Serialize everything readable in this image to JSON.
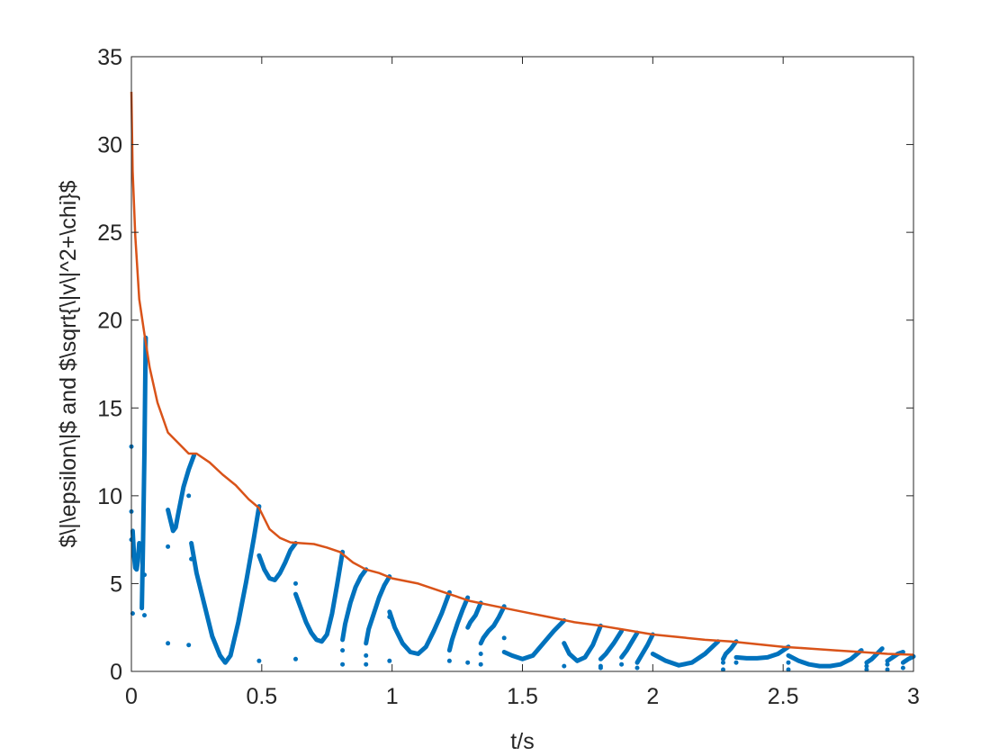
{
  "chart_data": {
    "type": "line",
    "title": "",
    "xlabel": "t/s",
    "ylabel": "$\\|\\epsilon\\|$ and $\\sqrt{\\|v\\|^2+\\chi}$",
    "xlim": [
      0,
      3
    ],
    "ylim": [
      0,
      35
    ],
    "xticks": [
      0,
      0.5,
      1,
      1.5,
      2,
      2.5,
      3
    ],
    "xtick_labels": [
      "0",
      "0.5",
      "1",
      "1.5",
      "2",
      "2.5",
      "3"
    ],
    "yticks": [
      0,
      5,
      10,
      15,
      20,
      25,
      30,
      35
    ],
    "ytick_labels": [
      "0",
      "5",
      "10",
      "15",
      "20",
      "25",
      "30",
      "35"
    ],
    "grid": false,
    "legend": null,
    "colors": {
      "envelope": "#D95319",
      "error": "#0072BD",
      "axis": "#262626"
    },
    "series": [
      {
        "style": "line",
        "x": [
          0,
          0.005,
          0.015,
          0.03,
          0.05,
          0.07,
          0.1,
          0.14,
          0.18,
          0.22,
          0.25,
          0.3,
          0.35,
          0.4,
          0.45,
          0.49,
          0.53,
          0.57,
          0.61,
          0.65,
          0.7,
          0.75,
          0.8,
          0.85,
          0.9,
          0.95,
          1.0,
          1.1,
          1.2,
          1.3,
          1.4,
          1.5,
          1.6,
          1.7,
          1.8,
          1.9,
          2.0,
          2.1,
          2.2,
          2.3,
          2.4,
          2.5,
          2.6,
          2.7,
          2.8,
          2.9,
          3.0
        ],
        "y": [
          33,
          28.5,
          24.8,
          21.2,
          19.2,
          17.3,
          15.3,
          13.6,
          13.0,
          12.4,
          12.4,
          11.9,
          11.2,
          10.6,
          9.8,
          9.3,
          8.1,
          7.6,
          7.35,
          7.3,
          7.25,
          7.05,
          6.8,
          6.2,
          5.8,
          5.6,
          5.3,
          5.0,
          4.5,
          4.0,
          3.7,
          3.4,
          3.1,
          2.8,
          2.6,
          2.35,
          2.1,
          1.95,
          1.8,
          1.7,
          1.55,
          1.4,
          1.3,
          1.2,
          1.1,
          1.0,
          0.95
        ]
      },
      {
        "style": "markers",
        "segments": [
          {
            "x": [
              0.005,
              0.01,
              0.015,
              0.02,
              0.025,
              0.03
            ],
            "y": [
              8.0,
              6.6,
              5.9,
              5.8,
              6.3,
              7.3
            ]
          },
          {
            "x": [
              0.04,
              0.045,
              0.05,
              0.055
            ],
            "y": [
              3.6,
              7.5,
              12.5,
              19.0
            ]
          },
          {
            "x": [
              0.14,
              0.15,
              0.16,
              0.17,
              0.18,
              0.2,
              0.22,
              0.24
            ],
            "y": [
              9.2,
              8.6,
              8.0,
              8.2,
              9.0,
              10.5,
              11.5,
              12.3
            ]
          },
          {
            "x": [
              0.23,
              0.25,
              0.28,
              0.31,
              0.34,
              0.36,
              0.38,
              0.41,
              0.44,
              0.47,
              0.49
            ],
            "y": [
              7.3,
              5.6,
              3.8,
              2.0,
              0.9,
              0.5,
              0.9,
              2.8,
              5.1,
              7.6,
              9.4
            ]
          },
          {
            "x": [
              0.49,
              0.51,
              0.53,
              0.55,
              0.57,
              0.59,
              0.61,
              0.63
            ],
            "y": [
              6.6,
              5.8,
              5.3,
              5.2,
              5.6,
              6.2,
              6.9,
              7.3
            ]
          },
          {
            "x": [
              0.63,
              0.65,
              0.67,
              0.69,
              0.71,
              0.73,
              0.75,
              0.77,
              0.79,
              0.81
            ],
            "y": [
              4.4,
              3.6,
              2.8,
              2.2,
              1.8,
              1.7,
              2.1,
              3.3,
              5.0,
              6.8
            ]
          },
          {
            "x": [
              0.81,
              0.82,
              0.84,
              0.86,
              0.88,
              0.9
            ],
            "y": [
              1.8,
              2.7,
              3.9,
              4.8,
              5.4,
              5.8
            ]
          },
          {
            "x": [
              0.9,
              0.91,
              0.93,
              0.95,
              0.97,
              0.99
            ],
            "y": [
              1.6,
              2.4,
              3.3,
              4.2,
              4.9,
              5.4
            ]
          },
          {
            "x": [
              0.99,
              1.01,
              1.04,
              1.07,
              1.1,
              1.13,
              1.16,
              1.19,
              1.22
            ],
            "y": [
              3.4,
              2.5,
              1.6,
              1.1,
              1.0,
              1.4,
              2.3,
              3.3,
              4.5
            ]
          },
          {
            "x": [
              1.22,
              1.23,
              1.25,
              1.27,
              1.29
            ],
            "y": [
              1.2,
              1.8,
              2.7,
              3.5,
              4.2
            ]
          },
          {
            "x": [
              1.29,
              1.3,
              1.32,
              1.34
            ],
            "y": [
              2.5,
              2.8,
              3.2,
              3.9
            ]
          },
          {
            "x": [
              1.34,
              1.35,
              1.37,
              1.39,
              1.41,
              1.43
            ],
            "y": [
              1.6,
              1.9,
              2.3,
              2.6,
              3.1,
              3.7
            ]
          },
          {
            "x": [
              1.43,
              1.46,
              1.5,
              1.54,
              1.58,
              1.62,
              1.66
            ],
            "y": [
              1.1,
              0.9,
              0.7,
              0.9,
              1.6,
              2.3,
              2.9
            ]
          },
          {
            "x": [
              1.66,
              1.68,
              1.71,
              1.74,
              1.77,
              1.8
            ],
            "y": [
              1.6,
              1.0,
              0.6,
              0.8,
              1.5,
              2.6
            ]
          },
          {
            "x": [
              1.8,
              1.82,
              1.85,
              1.88
            ],
            "y": [
              0.7,
              1.0,
              1.6,
              2.3
            ]
          },
          {
            "x": [
              1.88,
              1.9,
              1.92,
              1.94
            ],
            "y": [
              0.8,
              1.2,
              1.7,
              2.2
            ]
          },
          {
            "x": [
              1.94,
              1.96,
              1.98,
              2.0
            ],
            "y": [
              0.5,
              1.0,
              1.5,
              2.1
            ]
          },
          {
            "x": [
              2.0,
              2.05,
              2.1,
              2.15,
              2.2,
              2.25
            ],
            "y": [
              1.0,
              0.6,
              0.35,
              0.5,
              1.0,
              1.7
            ]
          },
          {
            "x": [
              2.27,
              2.28,
              2.3,
              2.32
            ],
            "y": [
              0.7,
              1.0,
              1.3,
              1.7
            ]
          },
          {
            "x": [
              2.32,
              2.36,
              2.4,
              2.44,
              2.48,
              2.52
            ],
            "y": [
              0.8,
              0.75,
              0.75,
              0.8,
              1.0,
              1.4
            ]
          },
          {
            "x": [
              2.52,
              2.56,
              2.6,
              2.64,
              2.68,
              2.72,
              2.76,
              2.8
            ],
            "y": [
              0.9,
              0.6,
              0.4,
              0.3,
              0.3,
              0.4,
              0.7,
              1.2
            ]
          },
          {
            "x": [
              2.82,
              2.84,
              2.86,
              2.88
            ],
            "y": [
              0.5,
              0.7,
              1.0,
              1.3
            ]
          },
          {
            "x": [
              2.9,
              2.92,
              2.94,
              2.96
            ],
            "y": [
              0.6,
              0.8,
              1.0,
              1.1
            ]
          },
          {
            "x": [
              2.96,
              2.98,
              3.0
            ],
            "y": [
              0.5,
              0.7,
              0.85
            ]
          }
        ],
        "isolated": {
          "x": [
            0.0,
            0.005,
            0.0,
            0.0,
            0.05,
            0.05,
            0.14,
            0.14,
            0.22,
            0.22,
            0.23,
            0.49,
            0.63,
            0.63,
            0.81,
            0.81,
            0.9,
            0.9,
            0.99,
            0.99,
            1.22,
            1.29,
            1.34,
            1.34,
            1.43,
            1.66,
            1.66,
            1.8,
            1.8,
            1.88,
            1.94,
            2.27,
            2.27,
            2.32,
            2.52,
            2.52,
            2.82,
            2.82,
            2.9,
            2.9,
            2.96
          ],
          "y": [
            12.8,
            3.3,
            9.1,
            7.5,
            3.2,
            5.5,
            1.6,
            7.1,
            1.5,
            10.0,
            6.4,
            0.6,
            0.7,
            5.0,
            0.4,
            1.2,
            0.4,
            0.9,
            0.6,
            3.1,
            0.6,
            0.5,
            0.4,
            1.0,
            1.9,
            0.3,
            1.6,
            0.2,
            0.3,
            0.4,
            0.2,
            0.1,
            0.5,
            0.5,
            0.1,
            0.5,
            0.1,
            0.3,
            0.1,
            0.4,
            0.2
          ]
        }
      }
    ]
  }
}
